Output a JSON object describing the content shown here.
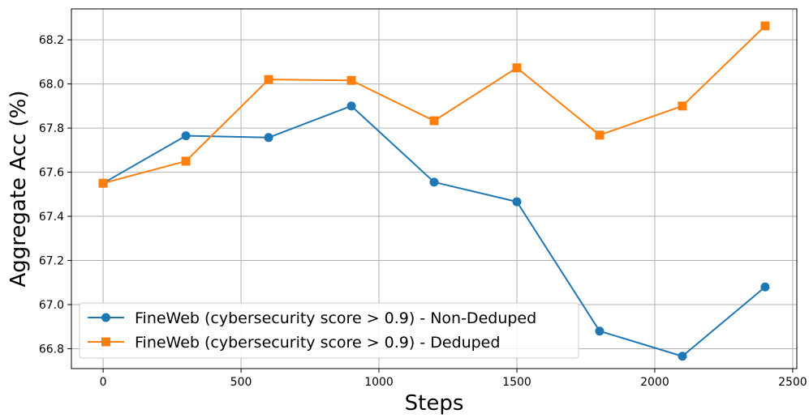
{
  "chart_data": {
    "type": "line",
    "title": "",
    "xlabel": "Steps",
    "ylabel": "Aggregate Acc (%)",
    "xlim": [
      -115,
      2515
    ],
    "ylim": [
      66.71,
      68.34
    ],
    "xticks": [
      0,
      500,
      1000,
      1500,
      2000,
      2500
    ],
    "yticks": [
      66.8,
      67.0,
      67.2,
      67.4,
      67.6,
      67.8,
      68.0,
      68.2
    ],
    "grid": true,
    "legend_position": "lower-left",
    "series": [
      {
        "name": "FineWeb (cybersecurity score > 0.9) - Non-Deduped",
        "color": "#1f77b4",
        "marker": "circle",
        "x": [
          0,
          300,
          600,
          900,
          1200,
          1500,
          1800,
          2100,
          2400
        ],
        "y": [
          67.55,
          67.765,
          67.757,
          67.9,
          67.555,
          67.466,
          66.88,
          66.766,
          67.08
        ]
      },
      {
        "name": "FineWeb (cybersecurity score > 0.9) - Deduped",
        "color": "#ff7f0e",
        "marker": "square",
        "x": [
          0,
          300,
          600,
          900,
          1200,
          1500,
          1800,
          2100,
          2400
        ],
        "y": [
          67.55,
          67.65,
          68.02,
          68.016,
          67.833,
          68.073,
          67.768,
          67.9,
          68.263
        ]
      }
    ]
  }
}
